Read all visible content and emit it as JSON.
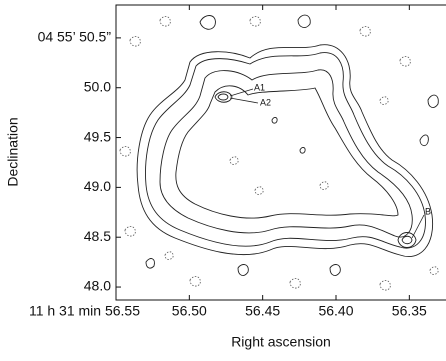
{
  "chart_data": {
    "type": "contour",
    "xlabel": "Right ascension",
    "ylabel": "Declination",
    "xlim": [
      56.55,
      56.325
    ],
    "ylim": [
      47.87,
      50.83
    ],
    "xticks": [
      {
        "value": 56.55,
        "label": "11 h 31 min 56.55"
      },
      {
        "value": 56.5,
        "label": "56.50"
      },
      56.45,
      {
        "value": 56.4,
        "label": "56.40"
      },
      56.35
    ],
    "yticks": [
      {
        "value": 50.5,
        "label": "04 55’ 50.5”"
      },
      {
        "value": 50,
        "label": "50.0"
      },
      49.5,
      {
        "value": 49,
        "label": "49.0"
      },
      48.5,
      {
        "value": 48,
        "label": "48.0"
      }
    ],
    "annotations": [
      "A1",
      "A2",
      "B"
    ]
  }
}
